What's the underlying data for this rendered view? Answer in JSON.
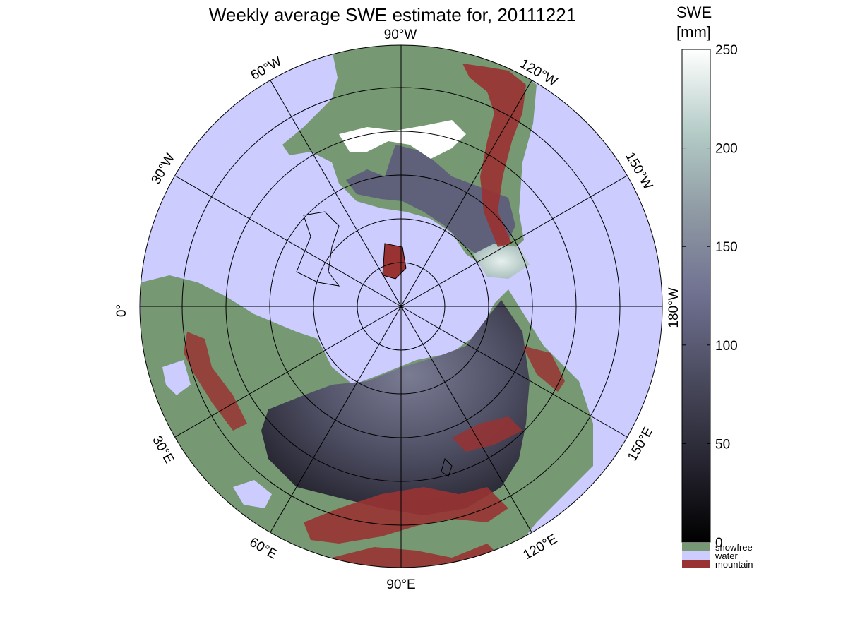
{
  "title": "Weekly average SWE estimate for, 20111221",
  "longitude_labels": [
    {
      "text": "90°W",
      "lon": 270
    },
    {
      "text": "120°W",
      "lon": 240
    },
    {
      "text": "150°W",
      "lon": 210
    },
    {
      "text": "180°W",
      "lon": 180
    },
    {
      "text": "150°E",
      "lon": 150
    },
    {
      "text": "120°E",
      "lon": 120
    },
    {
      "text": "90°E",
      "lon": 90
    },
    {
      "text": "60°E",
      "lon": 60
    },
    {
      "text": "30°E",
      "lon": 30
    },
    {
      "text": "0°",
      "lon": 0
    },
    {
      "text": "30°W",
      "lon": 330
    },
    {
      "text": "60°W",
      "lon": 300
    }
  ],
  "colorbar": {
    "label_line1": "SWE",
    "label_line2": "[mm]",
    "ticks": [
      "0",
      "50",
      "100",
      "150",
      "200",
      "250"
    ],
    "tick_values": [
      0,
      50,
      100,
      150,
      200,
      250
    ],
    "range": [
      0,
      250
    ],
    "stops": [
      "#000000",
      "#23222d",
      "#4a4a5e",
      "#6f7090",
      "#8f9aa4",
      "#b3cbc6",
      "#ffffff"
    ]
  },
  "legend": [
    {
      "label": "snowfree",
      "color": "#769873"
    },
    {
      "label": "water",
      "color": "#ccccff"
    },
    {
      "label": "mountain",
      "color": "#993333"
    }
  ],
  "map_colors": {
    "ocean": "#ccccff",
    "land_snowfree": "#769873",
    "mountain": "#993333",
    "snow_low": "#2e2d3a",
    "snow_mid": "#5c5d74",
    "snow_high": "#d6e6e4"
  }
}
